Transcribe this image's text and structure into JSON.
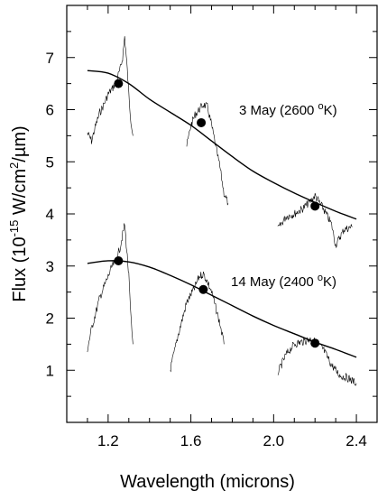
{
  "chart_data": {
    "type": "line",
    "title": "",
    "xlabel": "Wavelength (microns)",
    "ylabel": {
      "prefix": "Flux (10",
      "exp1": "-15",
      "mid": " W/cm",
      "exp2": "2",
      "suffix": "/µm)"
    },
    "xlim": [
      1.0,
      2.5
    ],
    "ylim": [
      0,
      8
    ],
    "x_ticks": [
      1.2,
      1.6,
      2.0,
      2.4
    ],
    "x_tick_labels": [
      "1.2",
      "1.6",
      "2.0",
      "2.4"
    ],
    "y_ticks": [
      1,
      2,
      3,
      4,
      5,
      6,
      7
    ],
    "y_tick_labels": [
      "1",
      "2",
      "3",
      "4",
      "5",
      "6",
      "7"
    ],
    "grid": false,
    "series": [
      {
        "label": {
          "main": "3 May (2600 ",
          "sup": "o",
          "unit": "K)"
        },
        "blackbody": [
          [
            1.1,
            6.75
          ],
          [
            1.2,
            6.7
          ],
          [
            1.3,
            6.5
          ],
          [
            1.4,
            6.2
          ],
          [
            1.5,
            5.95
          ],
          [
            1.6,
            5.7
          ],
          [
            1.7,
            5.4
          ],
          [
            1.8,
            5.1
          ],
          [
            1.9,
            4.82
          ],
          [
            2.0,
            4.6
          ],
          [
            2.1,
            4.4
          ],
          [
            2.2,
            4.22
          ],
          [
            2.3,
            4.05
          ],
          [
            2.4,
            3.9
          ]
        ],
        "photometry": [
          [
            1.25,
            6.5
          ],
          [
            1.65,
            5.75
          ],
          [
            2.2,
            4.15
          ]
        ],
        "spectrum": [
          [
            [
              1.1,
              5.55
            ],
            [
              1.12,
              5.4
            ],
            [
              1.14,
              5.7
            ],
            [
              1.16,
              5.95
            ],
            [
              1.18,
              6.1
            ],
            [
              1.2,
              6.3
            ],
            [
              1.22,
              6.4
            ],
            [
              1.24,
              6.55
            ],
            [
              1.26,
              6.8
            ],
            [
              1.27,
              7.0
            ],
            [
              1.28,
              7.4
            ],
            [
              1.29,
              6.9
            ],
            [
              1.3,
              6.3
            ],
            [
              1.31,
              5.8
            ],
            [
              1.32,
              5.5
            ]
          ],
          [
            [
              1.58,
              5.3
            ],
            [
              1.6,
              5.7
            ],
            [
              1.62,
              5.9
            ],
            [
              1.64,
              6.0
            ],
            [
              1.66,
              6.1
            ],
            [
              1.68,
              6.05
            ],
            [
              1.7,
              5.7
            ],
            [
              1.72,
              5.3
            ],
            [
              1.74,
              4.9
            ],
            [
              1.76,
              4.4
            ],
            [
              1.78,
              4.2
            ]
          ],
          [
            [
              2.02,
              3.7
            ],
            [
              2.06,
              3.95
            ],
            [
              2.1,
              4.0
            ],
            [
              2.14,
              4.1
            ],
            [
              2.18,
              4.25
            ],
            [
              2.2,
              4.35
            ],
            [
              2.24,
              4.1
            ],
            [
              2.28,
              3.8
            ],
            [
              2.3,
              3.4
            ],
            [
              2.34,
              3.7
            ],
            [
              2.38,
              3.75
            ]
          ]
        ]
      },
      {
        "label": {
          "main": "14 May (2400 ",
          "sup": "o",
          "unit": "K)"
        },
        "blackbody": [
          [
            1.1,
            3.05
          ],
          [
            1.2,
            3.1
          ],
          [
            1.3,
            3.08
          ],
          [
            1.4,
            2.98
          ],
          [
            1.5,
            2.82
          ],
          [
            1.6,
            2.64
          ],
          [
            1.7,
            2.44
          ],
          [
            1.8,
            2.24
          ],
          [
            1.9,
            2.04
          ],
          [
            2.0,
            1.86
          ],
          [
            2.1,
            1.7
          ],
          [
            2.2,
            1.54
          ],
          [
            2.3,
            1.4
          ],
          [
            2.4,
            1.25
          ]
        ],
        "photometry": [
          [
            1.25,
            3.1
          ],
          [
            1.66,
            2.55
          ],
          [
            2.2,
            1.52
          ]
        ],
        "spectrum": [
          [
            [
              1.1,
              1.4
            ],
            [
              1.12,
              1.8
            ],
            [
              1.14,
              2.1
            ],
            [
              1.16,
              2.4
            ],
            [
              1.18,
              2.6
            ],
            [
              1.2,
              2.8
            ],
            [
              1.22,
              3.0
            ],
            [
              1.24,
              3.1
            ],
            [
              1.26,
              3.4
            ],
            [
              1.27,
              3.6
            ],
            [
              1.28,
              3.8
            ],
            [
              1.29,
              3.3
            ],
            [
              1.3,
              2.8
            ],
            [
              1.31,
              2.0
            ],
            [
              1.32,
              1.5
            ]
          ],
          [
            [
              1.5,
              1.0
            ],
            [
              1.54,
              1.7
            ],
            [
              1.58,
              2.3
            ],
            [
              1.62,
              2.6
            ],
            [
              1.64,
              2.8
            ],
            [
              1.66,
              2.85
            ],
            [
              1.68,
              2.7
            ],
            [
              1.7,
              2.5
            ],
            [
              1.72,
              2.2
            ],
            [
              1.74,
              1.9
            ],
            [
              1.76,
              1.5
            ]
          ],
          [
            [
              2.02,
              0.95
            ],
            [
              2.06,
              1.3
            ],
            [
              2.1,
              1.5
            ],
            [
              2.14,
              1.55
            ],
            [
              2.18,
              1.6
            ],
            [
              2.2,
              1.55
            ],
            [
              2.24,
              1.4
            ],
            [
              2.28,
              1.1
            ],
            [
              2.32,
              0.9
            ],
            [
              2.36,
              0.85
            ],
            [
              2.4,
              0.75
            ]
          ]
        ]
      }
    ]
  }
}
